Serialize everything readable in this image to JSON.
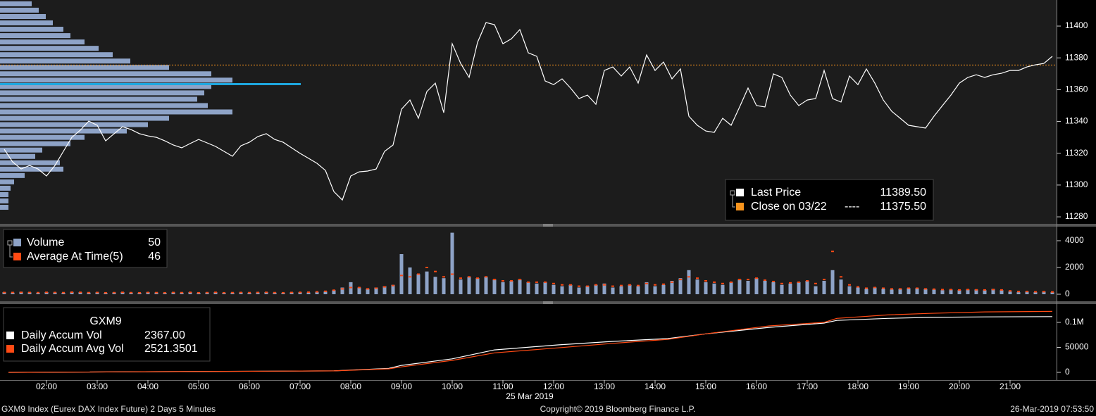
{
  "chart_data": [
    {
      "type": "line",
      "x": [
        70,
        80,
        90,
        100,
        110,
        120,
        130,
        140,
        150,
        160,
        170,
        180,
        190,
        200,
        210,
        220,
        230,
        240,
        250,
        260,
        270,
        280,
        290,
        300,
        310,
        320,
        330,
        340,
        350,
        360,
        370,
        380,
        390,
        400,
        410,
        420,
        430,
        440,
        450,
        460,
        470,
        480,
        490,
        500,
        510,
        520,
        530,
        540,
        550,
        560,
        570,
        580,
        590,
        600,
        610,
        620,
        630,
        640,
        650,
        660,
        670,
        680,
        690,
        700,
        710,
        720,
        730,
        740,
        750,
        760,
        770,
        780,
        790,
        800,
        810,
        820,
        830,
        840,
        850,
        860,
        870,
        880,
        890,
        900,
        910,
        920,
        930,
        940,
        950,
        960,
        970,
        980,
        990,
        1000,
        1010,
        1020,
        1030,
        1040,
        1050,
        1060,
        1070,
        1080,
        1090,
        1100,
        1110,
        1120,
        1130,
        1140,
        1150,
        1160,
        1170,
        1180,
        1190,
        1200,
        1210,
        1220,
        1230,
        1240,
        1250,
        1260,
        1270,
        1280,
        1290,
        1300,
        1310
      ],
      "xlim": [
        65,
        1315
      ],
      "ylim": [
        11275.6,
        11416.4
      ],
      "yticks": [
        11280,
        11300,
        11320,
        11340,
        11360,
        11380,
        11400
      ],
      "series": [
        {
          "name": "Last Price",
          "color": "#ffffff",
          "legend_value": "11389.50",
          "values": [
            11322.5,
            11314.5,
            11310.1,
            11312.3,
            11310.1,
            11305.7,
            11312.3,
            11321.2,
            11330.0,
            11334.5,
            11340.2,
            11337.6,
            11327.8,
            11332.3,
            11336.7,
            11334.9,
            11332.3,
            11330.9,
            11330.0,
            11327.8,
            11325.2,
            11323.4,
            11326.1,
            11328.7,
            11326.5,
            11324.3,
            11321.2,
            11318.1,
            11324.7,
            11326.9,
            11330.5,
            11332.3,
            11328.7,
            11326.9,
            11323.4,
            11319.9,
            11316.8,
            11313.7,
            11309.2,
            11295.9,
            11290.6,
            11305.7,
            11308.3,
            11308.8,
            11310.1,
            11321.2,
            11325.2,
            11347.7,
            11353.5,
            11342.0,
            11358.8,
            11364.1,
            11345.5,
            11388.9,
            11376.5,
            11367.7,
            11389.8,
            11402.2,
            11400.9,
            11388.9,
            11392.0,
            11397.8,
            11383.2,
            11381.0,
            11365.5,
            11363.2,
            11366.8,
            11361.0,
            11354.4,
            11356.6,
            11350.8,
            11372.1,
            11374.3,
            11368.6,
            11374.3,
            11364.1,
            11381.8,
            11372.1,
            11377.4,
            11366.8,
            11373.0,
            11343.3,
            11337.6,
            11334.0,
            11333.1,
            11342.0,
            11337.6,
            11349.1,
            11361.0,
            11350.0,
            11349.1,
            11369.9,
            11367.7,
            11356.6,
            11350.0,
            11353.5,
            11354.4,
            11372.1,
            11354.4,
            11352.2,
            11368.6,
            11363.2,
            11373.0,
            11364.1,
            11353.5,
            11346.4,
            11342.0,
            11337.6,
            11336.7,
            11335.8,
            11343.3,
            11350.0,
            11356.6,
            11364.1,
            11367.7,
            11369.4,
            11367.7,
            11369.4,
            11370.3,
            11372.1,
            11372.1,
            11374.3,
            11375.6,
            11376.5,
            11381.0
          ]
        }
      ],
      "reference": {
        "name": "Close on 03/22",
        "style": "----",
        "color": "#f7941d",
        "value": 11375.5,
        "value_label": "11375.50"
      },
      "profile": {
        "color": "#8ea3c7",
        "levels": [
          11414,
          11410,
          11406,
          11402,
          11398,
          11394,
          11390,
          11386,
          11382,
          11378,
          11374,
          11370,
          11366,
          11362,
          11358,
          11354,
          11350,
          11346,
          11342,
          11338,
          11334,
          11330,
          11326,
          11322,
          11318,
          11314,
          11310,
          11306,
          11302,
          11298,
          11294,
          11290,
          11286
        ],
        "values": [
          45,
          55,
          65,
          75,
          90,
          100,
          120,
          140,
          160,
          185,
          240,
          300,
          330,
          300,
          290,
          280,
          295,
          330,
          240,
          210,
          180,
          120,
          100,
          60,
          50,
          85,
          90,
          35,
          20,
          15,
          12,
          12,
          12
        ],
        "poc": {
          "level": 11363.5,
          "value": 427,
          "color": "#1ea8e0"
        }
      }
    },
    {
      "type": "bar",
      "x": [
        70,
        80,
        90,
        100,
        110,
        120,
        130,
        140,
        150,
        160,
        170,
        180,
        190,
        200,
        210,
        220,
        230,
        240,
        250,
        260,
        270,
        280,
        290,
        300,
        310,
        320,
        330,
        340,
        350,
        360,
        370,
        380,
        390,
        400,
        410,
        420,
        430,
        440,
        450,
        460,
        470,
        480,
        490,
        500,
        510,
        520,
        530,
        540,
        550,
        560,
        570,
        580,
        590,
        600,
        610,
        620,
        630,
        640,
        650,
        660,
        670,
        680,
        690,
        700,
        710,
        720,
        730,
        740,
        750,
        760,
        770,
        780,
        790,
        800,
        810,
        820,
        830,
        840,
        850,
        860,
        870,
        880,
        890,
        900,
        910,
        920,
        930,
        940,
        950,
        960,
        970,
        980,
        990,
        1000,
        1010,
        1020,
        1030,
        1040,
        1050,
        1060,
        1070,
        1080,
        1090,
        1100,
        1110,
        1120,
        1130,
        1140,
        1150,
        1160,
        1170,
        1180,
        1190,
        1200,
        1210,
        1220,
        1230,
        1240,
        1250,
        1260,
        1270,
        1280,
        1290,
        1300,
        1310
      ],
      "xlim": [
        65,
        1315
      ],
      "ylim": [
        -526,
        5052
      ],
      "yticks": [
        0,
        2000,
        4000
      ],
      "series": [
        {
          "name": "Volume",
          "mark": "bar",
          "color": "#8ea3c7",
          "legend_value": "50",
          "values": [
            150,
            120,
            180,
            140,
            100,
            160,
            130,
            110,
            170,
            150,
            120,
            140,
            100,
            130,
            160,
            120,
            110,
            150,
            130,
            100,
            140,
            120,
            160,
            110,
            130,
            150,
            100,
            120,
            140,
            110,
            130,
            160,
            120,
            100,
            140,
            150,
            130,
            170,
            200,
            300,
            500,
            900,
            500,
            400,
            500,
            600,
            700,
            3000,
            2000,
            1500,
            1700,
            1300,
            1200,
            4600,
            1100,
            1300,
            1200,
            1300,
            1100,
            900,
            1000,
            1100,
            900,
            800,
            900,
            700,
            600,
            700,
            500,
            600,
            700,
            800,
            500,
            600,
            700,
            600,
            900,
            600,
            700,
            1000,
            1200,
            1800,
            1100,
            900,
            800,
            700,
            900,
            1100,
            1000,
            1200,
            1000,
            900,
            700,
            800,
            900,
            1000,
            600,
            1000,
            1800,
            1100,
            600,
            500,
            400,
            500,
            400,
            350,
            400,
            450,
            450,
            400,
            350,
            300,
            350,
            300,
            350,
            350,
            300,
            400,
            300,
            200,
            150,
            200,
            150,
            200,
            150
          ]
        },
        {
          "name": "Average At Time(5)",
          "mark": "dash",
          "color": "#ff4a14",
          "legend_value": "46",
          "values": [
            130,
            130,
            140,
            130,
            120,
            140,
            130,
            120,
            150,
            140,
            120,
            130,
            110,
            120,
            140,
            120,
            110,
            130,
            120,
            110,
            130,
            120,
            140,
            110,
            120,
            140,
            110,
            120,
            130,
            120,
            130,
            140,
            120,
            110,
            130,
            140,
            150,
            180,
            220,
            300,
            400,
            500,
            500,
            400,
            450,
            550,
            650,
            1400,
            1300,
            1500,
            2000,
            1700,
            1300,
            1500,
            1200,
            1300,
            1200,
            1300,
            1100,
            1000,
            1000,
            1100,
            900,
            900,
            900,
            800,
            700,
            700,
            600,
            600,
            700,
            700,
            600,
            650,
            700,
            650,
            800,
            700,
            750,
            900,
            1100,
            1300,
            1200,
            1000,
            900,
            800,
            900,
            1100,
            1100,
            1200,
            1050,
            950,
            800,
            850,
            900,
            1000,
            800,
            1100,
            3200,
            1300,
            700,
            550,
            450,
            500,
            450,
            400,
            400,
            450,
            450,
            400,
            380,
            350,
            350,
            320,
            350,
            330,
            320,
            350,
            320,
            250,
            200,
            200,
            180,
            190,
            170
          ]
        }
      ]
    },
    {
      "type": "line",
      "title": "GXM9",
      "x": [
        75,
        460,
        525,
        540,
        600,
        650,
        725,
        790,
        855,
        900,
        975,
        1040,
        1055,
        1115,
        1165,
        1230,
        1310
      ],
      "xlim": [
        65,
        1315
      ],
      "ylim": [
        -15490,
        136620
      ],
      "yticks": [
        0,
        50000,
        {
          "value": 100000,
          "label": "0.1M"
        }
      ],
      "xticks": [
        {
          "value": 120,
          "label": "02:00"
        },
        {
          "value": 180,
          "label": "03:00"
        },
        {
          "value": 240,
          "label": "04:00"
        },
        {
          "value": 300,
          "label": "05:00"
        },
        {
          "value": 360,
          "label": "06:00"
        },
        {
          "value": 420,
          "label": "07:00"
        },
        {
          "value": 480,
          "label": "08:00"
        },
        {
          "value": 540,
          "label": "09:00"
        },
        {
          "value": 600,
          "label": "10:00"
        },
        {
          "value": 660,
          "label": "11:00"
        },
        {
          "value": 720,
          "label": "12:00"
        },
        {
          "value": 780,
          "label": "13:00"
        },
        {
          "value": 840,
          "label": "14:00"
        },
        {
          "value": 900,
          "label": "15:00"
        },
        {
          "value": 960,
          "label": "16:00"
        },
        {
          "value": 1020,
          "label": "17:00"
        },
        {
          "value": 1080,
          "label": "18:00"
        },
        {
          "value": 1140,
          "label": "19:00"
        },
        {
          "value": 1200,
          "label": "20:00"
        },
        {
          "value": 1260,
          "label": "21:00"
        }
      ],
      "xlabel": "25 Mar 2019",
      "series": [
        {
          "name": "Daily Accum Vol",
          "color": "#ffffff",
          "legend_value": "2367.00",
          "values": [
            0,
            3000,
            8000,
            14000,
            27000,
            45000,
            55000,
            62000,
            67600,
            77000,
            90000,
            98600,
            104000,
            108000,
            110000,
            111000,
            111500
          ]
        },
        {
          "name": "Daily Accum Avg Vol",
          "color": "#ff4a14",
          "legend_value": "2521.3501",
          "values": [
            0,
            3000,
            7000,
            11000,
            24000,
            39000,
            49000,
            58000,
            66000,
            77000,
            93000,
            100000,
            108000,
            115000,
            118000,
            121000,
            122000
          ]
        }
      ]
    }
  ],
  "footer": {
    "left": "GXM9 Index (Eurex DAX Index Future) 2 Days 5 Minutes",
    "center": "Copyright© 2019 Bloomberg Finance L.P.",
    "right": "26-Mar-2019 07:53:50"
  }
}
